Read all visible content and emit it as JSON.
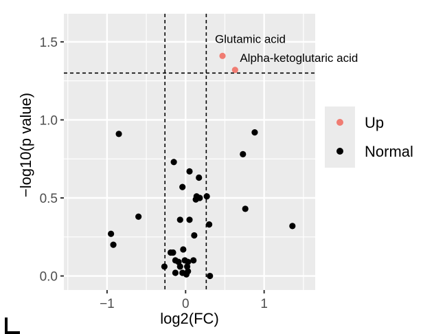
{
  "chart_data": {
    "type": "scatter",
    "xlabel": "log2(FC)",
    "ylabel": "−log10(p value)",
    "xlim": [
      -1.55,
      1.65
    ],
    "ylim": [
      -0.09,
      1.68
    ],
    "xticks": [
      -1,
      0,
      1
    ],
    "xtick_labels": [
      "−1",
      "0",
      "1"
    ],
    "yticks": [
      0.0,
      0.5,
      1.0,
      1.5
    ],
    "ytick_labels": [
      "0.0",
      "0.5",
      "1.0",
      "1.5"
    ],
    "grid": true,
    "legend_position": "right",
    "thresholds": {
      "x": [
        -0.263,
        0.263
      ],
      "y": 1.3
    },
    "series": [
      {
        "name": "Up",
        "color": "#f07c72",
        "points": [
          {
            "x": 0.47,
            "y": 1.41
          },
          {
            "x": 0.63,
            "y": 1.32
          }
        ]
      },
      {
        "name": "Normal",
        "color": "#000000",
        "points": [
          {
            "x": -0.85,
            "y": 0.91
          },
          {
            "x": -0.95,
            "y": 0.27
          },
          {
            "x": -0.92,
            "y": 0.2
          },
          {
            "x": -0.6,
            "y": 0.38
          },
          {
            "x": -0.15,
            "y": 0.73
          },
          {
            "x": 0.05,
            "y": 0.67
          },
          {
            "x": 0.17,
            "y": 0.63
          },
          {
            "x": -0.04,
            "y": 0.57
          },
          {
            "x": 0.14,
            "y": 0.51
          },
          {
            "x": 0.13,
            "y": 0.49
          },
          {
            "x": 0.18,
            "y": 0.5
          },
          {
            "x": 0.27,
            "y": 0.51
          },
          {
            "x": -0.07,
            "y": 0.36
          },
          {
            "x": 0.05,
            "y": 0.36
          },
          {
            "x": 0.3,
            "y": 0.33
          },
          {
            "x": 0.11,
            "y": 0.26
          },
          {
            "x": -0.03,
            "y": 0.17
          },
          {
            "x": -0.19,
            "y": 0.15
          },
          {
            "x": -0.16,
            "y": 0.15
          },
          {
            "x": -0.13,
            "y": 0.1
          },
          {
            "x": -0.09,
            "y": 0.09
          },
          {
            "x": -0.01,
            "y": 0.1
          },
          {
            "x": 0.03,
            "y": 0.09
          },
          {
            "x": 0.1,
            "y": 0.1
          },
          {
            "x": -0.27,
            "y": 0.06
          },
          {
            "x": -0.07,
            "y": 0.06
          },
          {
            "x": 0.02,
            "y": 0.06
          },
          {
            "x": -0.13,
            "y": 0.02
          },
          {
            "x": -0.04,
            "y": 0.02
          },
          {
            "x": 0.01,
            "y": 0.01
          },
          {
            "x": 0.03,
            "y": 0.03
          },
          {
            "x": 0.31,
            "y": 0.0
          },
          {
            "x": 0.73,
            "y": 0.78
          },
          {
            "x": 0.88,
            "y": 0.92
          },
          {
            "x": 0.76,
            "y": 0.43
          },
          {
            "x": 1.36,
            "y": 0.32
          }
        ]
      }
    ],
    "annotations": [
      {
        "text": "Glutamic acid",
        "x": 0.47,
        "y": 1.41
      },
      {
        "text": "Alpha-ketoglutaric acid",
        "x": 0.63,
        "y": 1.32
      }
    ]
  }
}
